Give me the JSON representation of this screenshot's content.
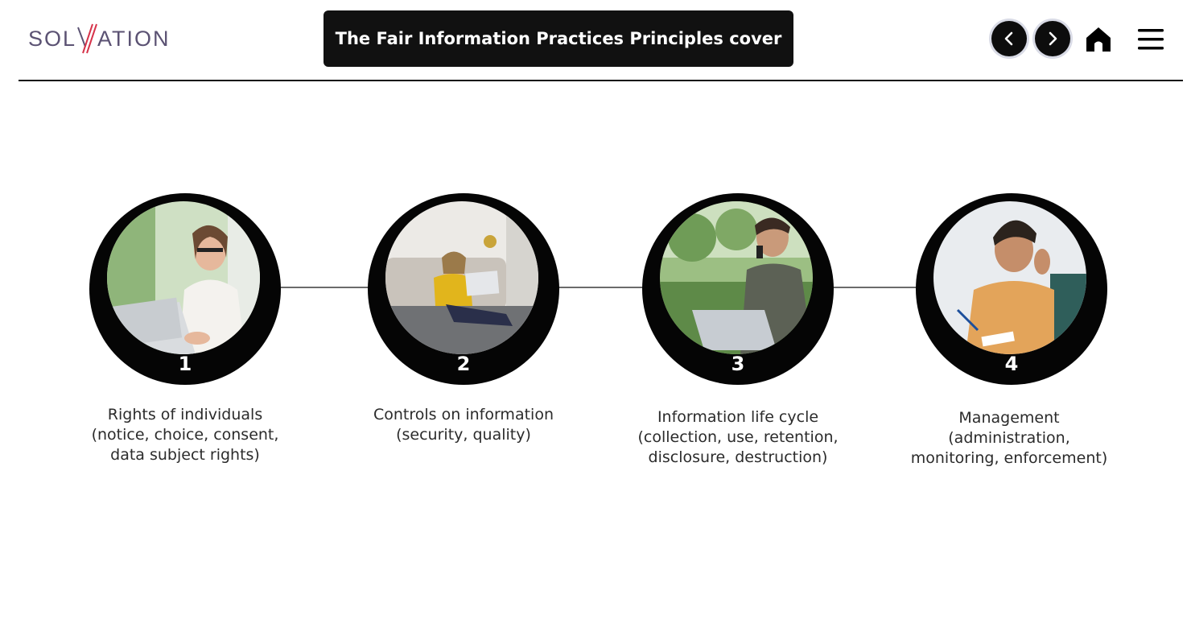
{
  "header": {
    "logo_text_left": "SOL",
    "logo_text_right": "ATION",
    "title": "The Fair Information Practices Principles cover"
  },
  "nav": {
    "prev_icon": "chevron-left-icon",
    "next_icon": "chevron-right-icon",
    "home_icon": "home-icon",
    "menu_icon": "hamburger-menu-icon"
  },
  "colors": {
    "logo": "#5b5273",
    "logo_accent": "#d6334a",
    "title_bg": "#111111",
    "ring": "#050505",
    "connector": "#6b6b6b",
    "text": "#2b2b2b"
  },
  "steps": [
    {
      "number": "1",
      "lines": [
        "Rights of individuals",
        "(notice, choice, consent,",
        "data subject rights)"
      ]
    },
    {
      "number": "2",
      "lines": [
        "Controls on information",
        "(security, quality)"
      ]
    },
    {
      "number": "3",
      "lines": [
        "Information life cycle",
        "(collection, use, retention,",
        "disclosure, destruction)"
      ]
    },
    {
      "number": "4",
      "lines": [
        "Management",
        "(administration,",
        "monitoring, enforcement)"
      ]
    }
  ]
}
